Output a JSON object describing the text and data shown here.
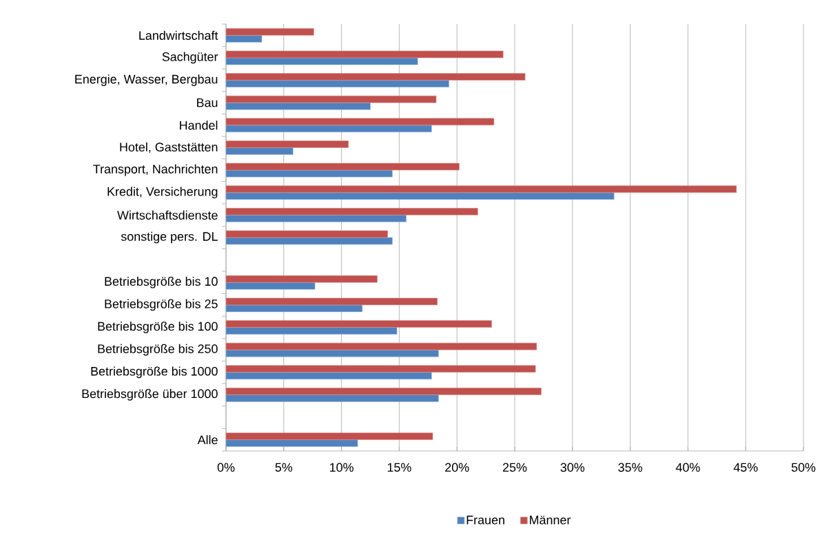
{
  "chart_data": {
    "type": "bar",
    "orientation": "horizontal",
    "categories": [
      "Landwirtschaft",
      "Sachgüter",
      "Energie, Wasser, Bergbau",
      "Bau",
      "Handel",
      "Hotel, Gaststätten",
      "Transport, Nachrichten",
      "Kredit, Versicherung",
      "Wirtschaftsdienste",
      "sonstige pers. DL",
      null,
      "Betriebsgröße bis 10",
      "Betriebsgröße bis 25",
      "Betriebsgröße bis 100",
      "Betriebsgröße bis 250",
      "Betriebsgröße bis 1000",
      "Betriebsgröße über 1000",
      null,
      "Alle"
    ],
    "series": [
      {
        "name": "Frauen",
        "color": "#4f81bd",
        "values": [
          3.1,
          16.6,
          19.3,
          12.5,
          17.8,
          5.8,
          14.4,
          33.6,
          15.6,
          14.4,
          null,
          7.7,
          11.8,
          14.8,
          18.4,
          17.8,
          18.4,
          null,
          11.4
        ]
      },
      {
        "name": "Männer",
        "color": "#c0504d",
        "values": [
          7.6,
          24.0,
          25.9,
          18.2,
          23.2,
          10.6,
          20.2,
          44.2,
          21.8,
          14.0,
          null,
          13.1,
          18.3,
          23.0,
          26.9,
          26.8,
          27.3,
          null,
          17.9
        ]
      }
    ],
    "xlim": [
      0,
      50
    ],
    "xticks": [
      {
        "value": 0,
        "label": "0%"
      },
      {
        "value": 5,
        "label": "5%"
      },
      {
        "value": 10,
        "label": "10%"
      },
      {
        "value": 15,
        "label": "15%"
      },
      {
        "value": 20,
        "label": "20%"
      },
      {
        "value": 25,
        "label": "25%"
      },
      {
        "value": 30,
        "label": "30%"
      },
      {
        "value": 35,
        "label": "35%"
      },
      {
        "value": 40,
        "label": "40%"
      },
      {
        "value": 45,
        "label": "45%"
      },
      {
        "value": 50,
        "label": "50%"
      }
    ],
    "grid": "x",
    "legend": "bottom"
  }
}
